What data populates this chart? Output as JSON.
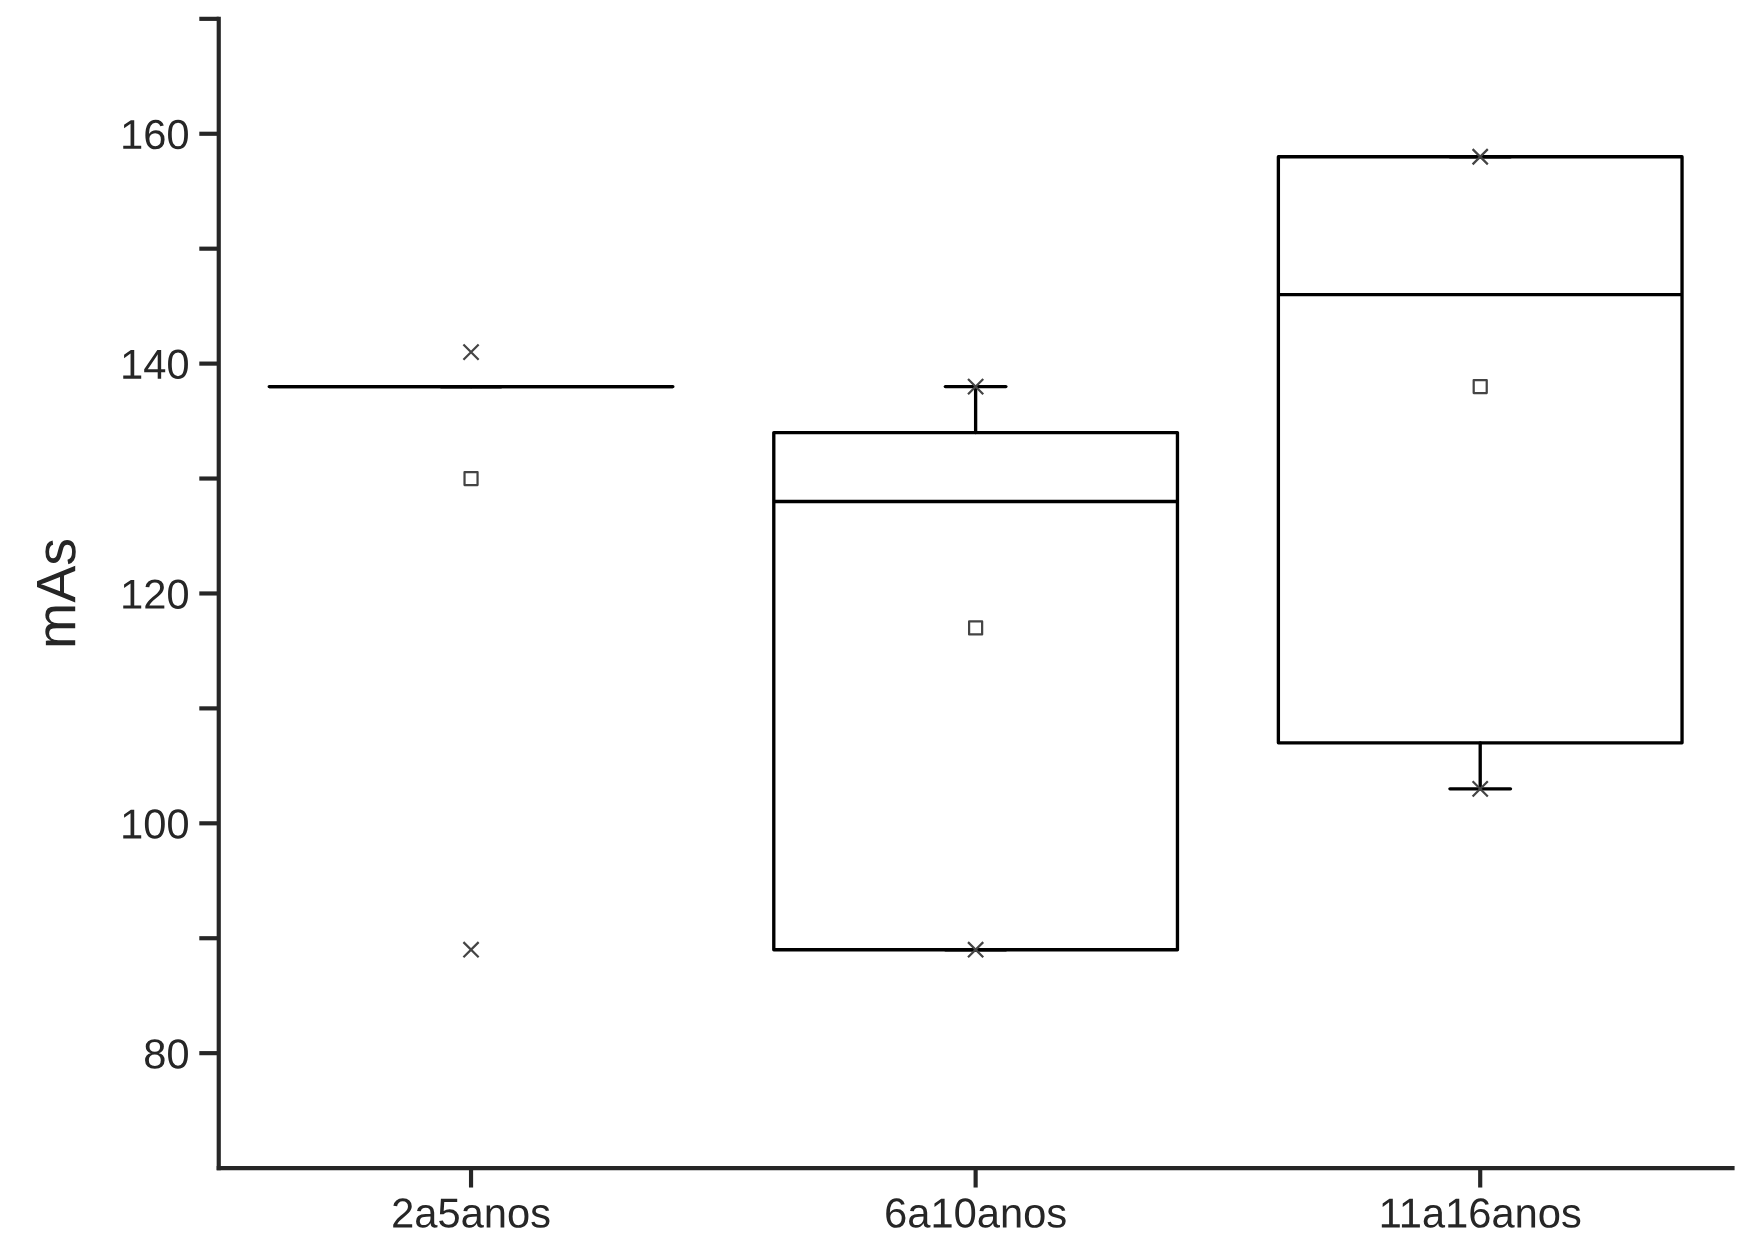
{
  "chart_data": {
    "type": "box",
    "ylabel": "mAs",
    "categories": [
      "2a5anos",
      "6a10anos",
      "11a16anos"
    ],
    "boxes": [
      {
        "low": 138,
        "q1": 138,
        "median": 138,
        "q3": 138,
        "high": 138,
        "mean": 130,
        "outliers": [
          141,
          89
        ]
      },
      {
        "low": 89,
        "q1": 89,
        "median": 128,
        "q3": 134,
        "high": 138,
        "mean": 117,
        "outliers": [
          138,
          89
        ]
      },
      {
        "low": 103,
        "q1": 107,
        "median": 146,
        "q3": 158,
        "high": 158,
        "mean": 138,
        "outliers": [
          158,
          103
        ]
      }
    ],
    "ylim": [
      70,
      170
    ],
    "yticks": [
      80,
      {
        "value": 90,
        "label": null
      },
      100,
      {
        "value": 110,
        "label": null
      },
      120,
      {
        "value": 130,
        "label": null
      },
      140,
      {
        "value": 150,
        "label": null
      },
      160,
      {
        "value": 170,
        "label": null
      }
    ],
    "grid": false
  }
}
